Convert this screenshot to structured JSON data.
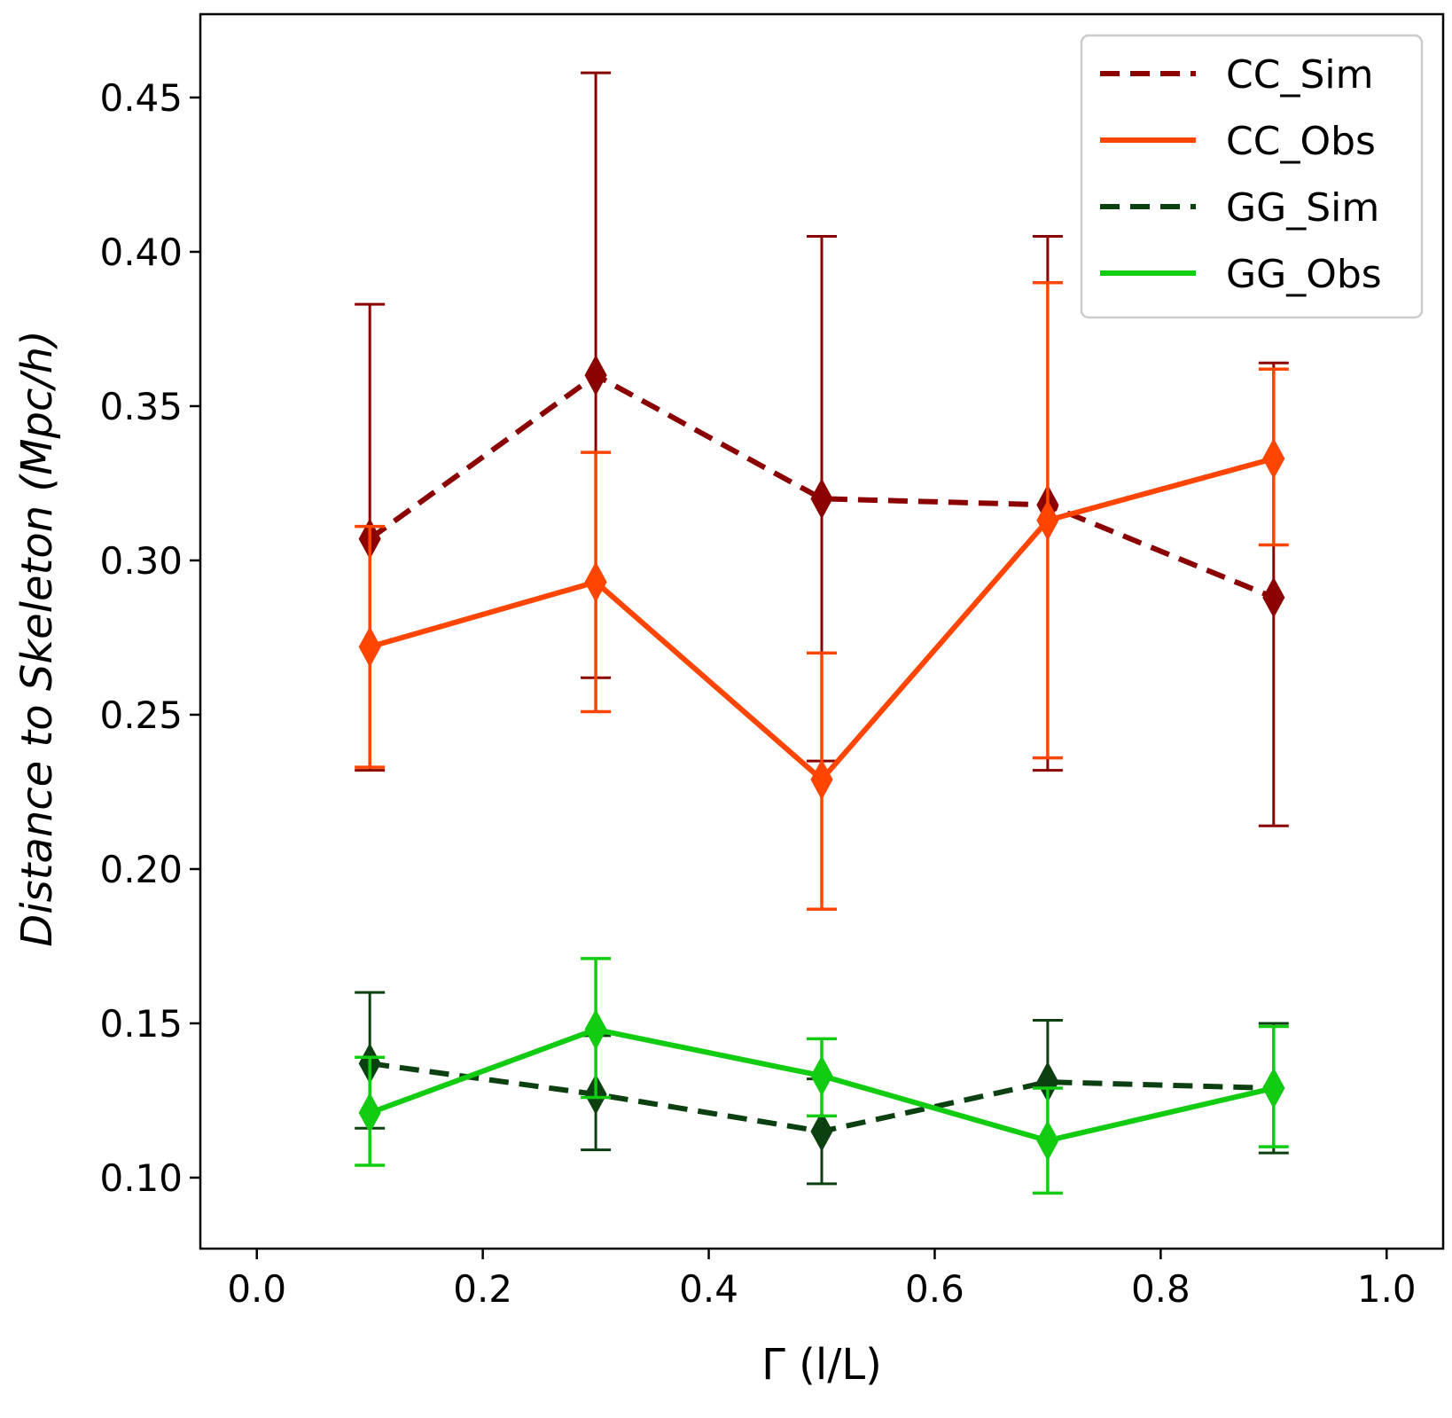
{
  "chart_data": {
    "type": "line",
    "xlabel": "Γ (l/L)",
    "ylabel": "Distance to Skeleton (Mpc/h)",
    "xlim": [
      -0.05,
      1.05
    ],
    "ylim": [
      0.077,
      0.477
    ],
    "xticks": [
      0.0,
      0.2,
      0.4,
      0.6,
      0.8,
      1.0
    ],
    "xtick_labels": [
      "0.0",
      "0.2",
      "0.4",
      "0.6",
      "0.8",
      "1.0"
    ],
    "yticks": [
      0.1,
      0.15,
      0.2,
      0.25,
      0.3,
      0.35,
      0.4,
      0.45
    ],
    "ytick_labels": [
      "0.10",
      "0.15",
      "0.20",
      "0.25",
      "0.30",
      "0.35",
      "0.40",
      "0.45"
    ],
    "legend_position": "top-right",
    "x": [
      0.1,
      0.3,
      0.5,
      0.7,
      0.9
    ],
    "series": [
      {
        "name": "CC_Sim",
        "color": "#8b0000",
        "linestyle": "dashed",
        "values": [
          0.307,
          0.36,
          0.32,
          0.318,
          0.288
        ],
        "err_low": [
          0.232,
          0.262,
          0.235,
          0.232,
          0.214
        ],
        "err_high": [
          0.383,
          0.458,
          0.405,
          0.405,
          0.364
        ]
      },
      {
        "name": "CC_Obs",
        "color": "#ff4500",
        "linestyle": "solid",
        "values": [
          0.272,
          0.293,
          0.229,
          0.313,
          0.333
        ],
        "err_low": [
          0.233,
          0.251,
          0.187,
          0.236,
          0.305
        ],
        "err_high": [
          0.311,
          0.335,
          0.27,
          0.39,
          0.362
        ]
      },
      {
        "name": "GG_Sim",
        "color": "#0d4010",
        "linestyle": "dashed",
        "values": [
          0.137,
          0.127,
          0.115,
          0.131,
          0.129
        ],
        "err_low": [
          0.116,
          0.109,
          0.098,
          0.113,
          0.108
        ],
        "err_high": [
          0.16,
          0.146,
          0.132,
          0.151,
          0.15
        ]
      },
      {
        "name": "GG_Obs",
        "color": "#11cc11",
        "linestyle": "solid",
        "values": [
          0.121,
          0.148,
          0.133,
          0.112,
          0.129
        ],
        "err_low": [
          0.104,
          0.126,
          0.12,
          0.095,
          0.11
        ],
        "err_high": [
          0.139,
          0.171,
          0.145,
          0.129,
          0.149
        ]
      }
    ]
  }
}
